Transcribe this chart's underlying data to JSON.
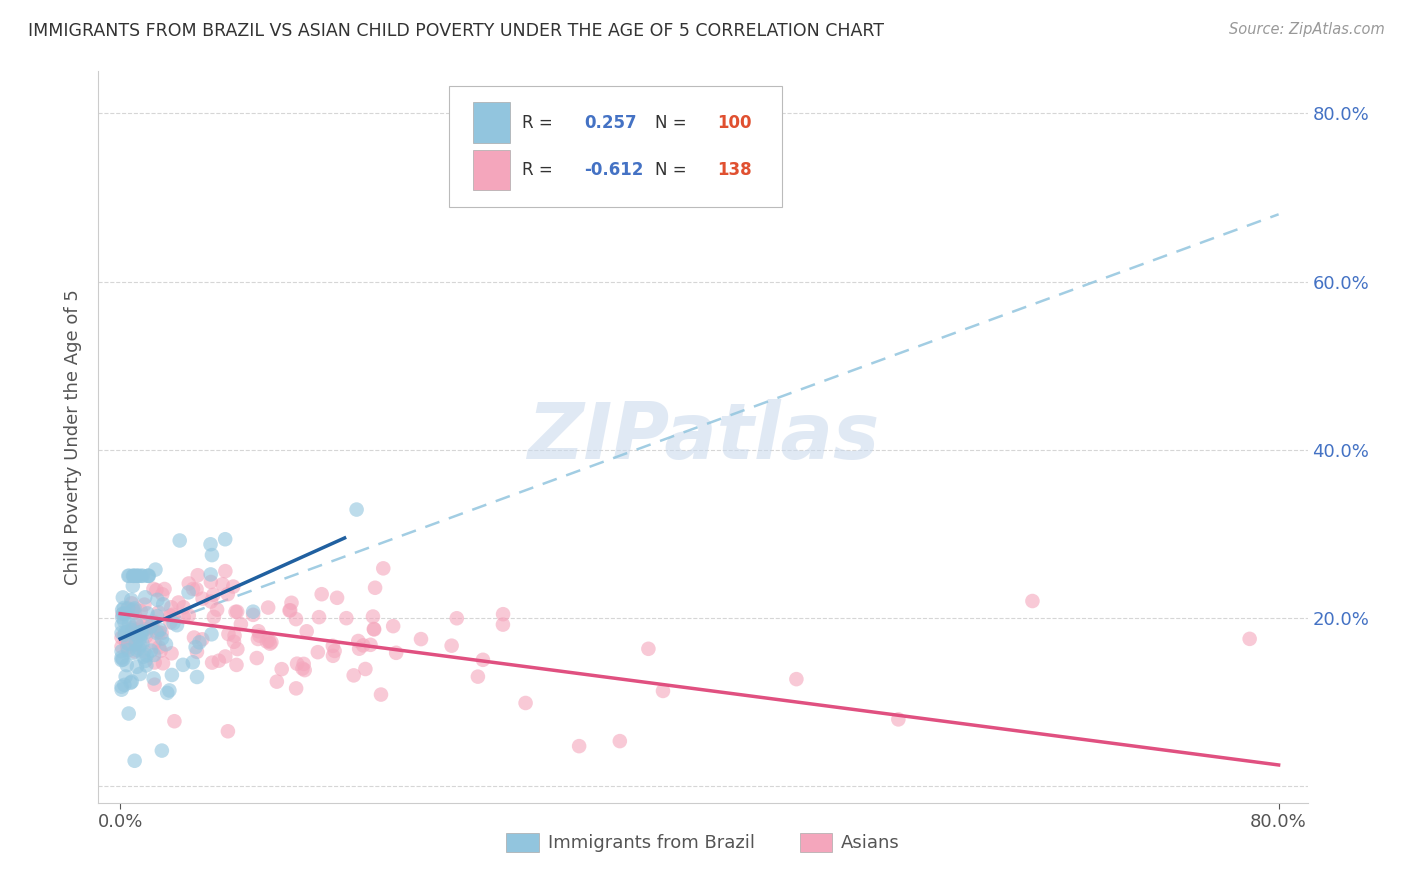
{
  "title": "IMMIGRANTS FROM BRAZIL VS ASIAN CHILD POVERTY UNDER THE AGE OF 5 CORRELATION CHART",
  "source_text": "Source: ZipAtlas.com",
  "ylabel": "Child Poverty Under the Age of 5",
  "watermark": "ZIPatlas",
  "brazil_color": "#92C5DE",
  "brazil_line_color": "#2060A0",
  "asian_color": "#F4A6BC",
  "asian_line_color": "#E05080",
  "dashed_line_color": "#92C5DE",
  "right_axis_color": "#4472C4",
  "background_color": "#ffffff",
  "title_color": "#333333",
  "source_color": "#999999",
  "ylabel_color": "#555555",
  "tick_color": "#555555",
  "grid_color": "#cccccc",
  "xlim": [
    -0.015,
    0.82
  ],
  "ylim": [
    -0.02,
    0.85
  ],
  "x_ticks": [
    0.0,
    0.8
  ],
  "x_tick_labels": [
    "0.0%",
    "80.0%"
  ],
  "y_ticks": [
    0.0,
    0.2,
    0.4,
    0.6,
    0.8
  ],
  "y_tick_labels_right": [
    "",
    "20.0%",
    "40.0%",
    "60.0%",
    "80.0%"
  ],
  "legend_R1": "0.257",
  "legend_N1": "100",
  "legend_R2": "-0.612",
  "legend_N2": "138",
  "legend_label1": "Immigrants from Brazil",
  "legend_label2": "Asians",
  "brazil_trend": [
    0.0,
    0.155,
    0.175,
    0.295
  ],
  "asian_trend": [
    0.0,
    0.8,
    0.205,
    0.025
  ],
  "dashed_trend": [
    0.0,
    0.8,
    0.175,
    0.68
  ]
}
